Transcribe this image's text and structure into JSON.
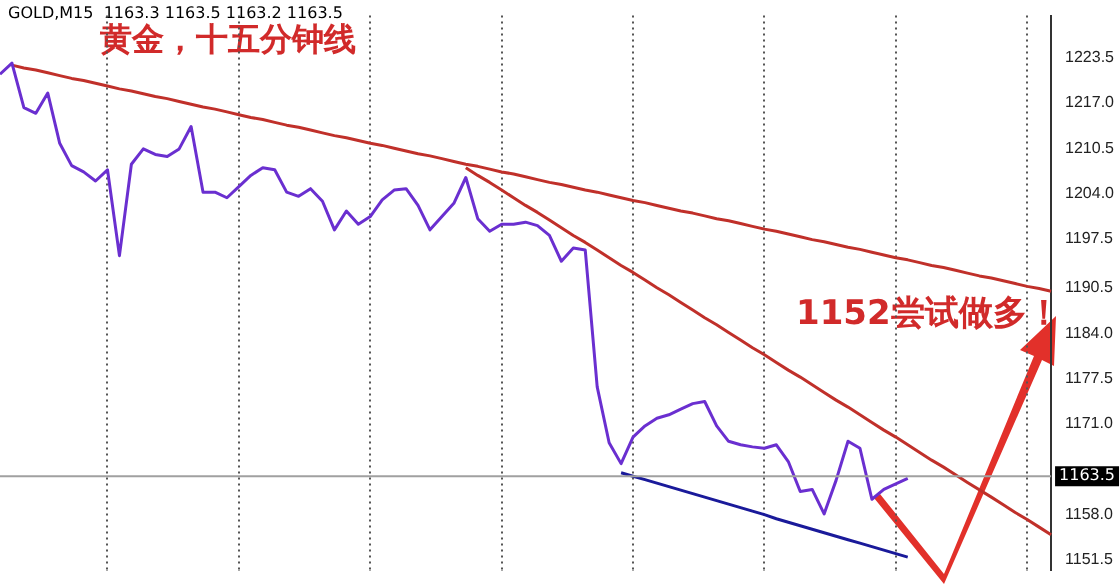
{
  "chart_data": {
    "type": "line",
    "title": "GOLD,M15  1163.3 1163.5 1163.2 1163.5",
    "annotations": [
      "黄金，十五分钟线",
      "1152尝试做多！"
    ],
    "categories": [
      null,
      null,
      null,
      null,
      null,
      null,
      null,
      null,
      null,
      null,
      null,
      null,
      null,
      null,
      null,
      null,
      null,
      null,
      null,
      null,
      null,
      null,
      null,
      null,
      null,
      null,
      null,
      null,
      null,
      null,
      null,
      null,
      null,
      null,
      null,
      null,
      null,
      null,
      null,
      null,
      null,
      null,
      null,
      null,
      null,
      null,
      null,
      null,
      null,
      null,
      null,
      null,
      null,
      null,
      null,
      null,
      null,
      null,
      null,
      null,
      null,
      null,
      null,
      null,
      null,
      null,
      null,
      null,
      null,
      null,
      null,
      null,
      null,
      null,
      null,
      null,
      null,
      null,
      null,
      null,
      null,
      null,
      null,
      null,
      null,
      null,
      null,
      null,
      null
    ],
    "series": [
      {
        "color": "#6a2fd0",
        "values": [
          1221.1,
          1222.7,
          1216.3,
          1215.5,
          1218.4,
          1211.2,
          1208.0,
          1207.1,
          1205.8,
          1207.4,
          1195.1,
          1208.2,
          1210.4,
          1209.6,
          1209.3,
          1210.4,
          1213.6,
          1204.2,
          1204.2,
          1203.4,
          1205.0,
          1206.6,
          1207.7,
          1207.4,
          1204.2,
          1203.6,
          1204.7,
          1202.9,
          1198.8,
          1201.5,
          1199.6,
          1200.7,
          1203.1,
          1204.5,
          1204.7,
          1202.3,
          1198.8,
          1200.7,
          1202.6,
          1206.3,
          1200.4,
          1198.6,
          1199.6,
          1199.6,
          1199.9,
          1199.4,
          1198.0,
          1194.3,
          1196.2,
          1195.9,
          1176.3,
          1168.3,
          1165.3,
          1169.1,
          1170.7,
          1171.8,
          1172.3,
          1173.1,
          1173.9,
          1174.2,
          1170.7,
          1168.5,
          1168.0,
          1167.7,
          1167.5,
          1168.0,
          1165.6,
          1161.3,
          1161.6,
          1158.1,
          1162.9,
          1168.5,
          1167.5,
          1160.2,
          1161.6,
          1162.4,
          1163.2,
          null,
          null,
          null,
          null,
          null,
          null,
          null,
          null,
          null,
          null,
          null,
          null
        ]
      },
      {
        "color": "#c0302a",
        "values": [
          null,
          1222.4,
          1222.0,
          1221.7,
          1221.3,
          1220.9,
          1220.5,
          1220.2,
          1219.8,
          1219.4,
          1219.0,
          1218.7,
          1218.3,
          1217.9,
          1217.6,
          1217.2,
          1216.8,
          1216.4,
          1216.1,
          1215.7,
          1215.3,
          1214.9,
          1214.6,
          1214.2,
          1213.8,
          1213.5,
          1213.1,
          1212.7,
          1212.3,
          1212.0,
          1211.6,
          1211.2,
          1210.9,
          1210.5,
          1210.1,
          1209.7,
          1209.4,
          1209.0,
          1208.6,
          1208.2,
          1207.9,
          1207.5,
          1207.1,
          1206.8,
          1206.4,
          1206.0,
          1205.6,
          1205.3,
          1204.9,
          1204.5,
          1204.2,
          1203.8,
          1203.4,
          1203.0,
          1202.7,
          1202.3,
          1201.9,
          1201.5,
          1201.2,
          1200.8,
          1200.4,
          1200.1,
          1199.7,
          1199.3,
          1198.9,
          1198.6,
          1198.2,
          1197.8,
          1197.4,
          1197.1,
          1196.7,
          1196.3,
          1196.0,
          1195.6,
          1195.2,
          1194.8,
          1194.5,
          1194.1,
          1193.7,
          1193.4,
          1193.0,
          1192.6,
          1192.2,
          1191.9,
          1191.5,
          1191.1,
          1190.7,
          1190.4,
          1190.0
        ]
      },
      {
        "color": "#c0302a",
        "values": [
          null,
          null,
          null,
          null,
          null,
          null,
          null,
          null,
          null,
          null,
          null,
          null,
          null,
          null,
          null,
          null,
          null,
          null,
          null,
          null,
          null,
          null,
          null,
          null,
          null,
          null,
          null,
          null,
          null,
          null,
          null,
          null,
          null,
          null,
          null,
          null,
          null,
          null,
          null,
          1207.7,
          1206.6,
          1205.6,
          1204.5,
          1203.4,
          1202.3,
          1201.3,
          1200.2,
          1199.1,
          1198.0,
          1197.0,
          1195.9,
          1194.8,
          1193.7,
          1192.7,
          1191.6,
          1190.5,
          1189.5,
          1188.4,
          1187.3,
          1186.2,
          1185.2,
          1184.1,
          1183.0,
          1181.9,
          1180.9,
          1179.8,
          1178.7,
          1177.7,
          1176.6,
          1175.5,
          1174.4,
          1173.4,
          1172.3,
          1171.2,
          1170.1,
          1169.1,
          1168.0,
          1166.9,
          1165.8,
          1164.8,
          1163.7,
          1162.6,
          null,
          1160.5,
          1159.4,
          1158.3,
          1157.3,
          1156.2,
          1155.1
        ]
      },
      {
        "color": "#1a1a9a",
        "values": [
          null,
          null,
          null,
          null,
          null,
          null,
          null,
          null,
          null,
          null,
          null,
          null,
          null,
          null,
          null,
          null,
          null,
          null,
          null,
          null,
          null,
          null,
          null,
          null,
          null,
          null,
          null,
          null,
          null,
          null,
          null,
          null,
          null,
          null,
          null,
          null,
          null,
          null,
          null,
          null,
          null,
          null,
          null,
          null,
          null,
          null,
          null,
          null,
          null,
          null,
          null,
          null,
          1164.0,
          1163.5,
          1163.0,
          1162.5,
          1162.0,
          1161.5,
          1161.0,
          1160.5,
          1160.0,
          1159.5,
          1159.0,
          1158.5,
          1158.0,
          1157.4,
          1156.9,
          1156.4,
          1155.9,
          1155.4,
          1154.9,
          1154.4,
          1153.9,
          1153.4,
          1152.9,
          1152.4,
          1151.9,
          null,
          null,
          null,
          null,
          null,
          null,
          null,
          null,
          null,
          null,
          null,
          null
        ]
      }
    ],
    "ylim": [
      1150,
      1229.5
    ],
    "yticks": [
      {
        "value": 1151.5,
        "label": "1151.5"
      },
      {
        "value": 1158,
        "label": "1158.0"
      },
      {
        "value": 1171,
        "label": "1171.0"
      },
      {
        "value": 1177.5,
        "label": "1177.5"
      },
      {
        "value": 1184,
        "label": "1184.0"
      },
      {
        "value": 1190.5,
        "label": "1190.5"
      },
      {
        "value": 1197.5,
        "label": "1197.5"
      },
      {
        "value": 1204,
        "label": "1204.0"
      },
      {
        "value": 1210.5,
        "label": "1210.5"
      },
      {
        "value": 1217,
        "label": "1217.0"
      },
      {
        "value": 1223.5,
        "label": "1223.5"
      }
    ],
    "ref_lines": [
      {
        "axis": "y",
        "value": 1163.5,
        "label": "1163.5",
        "color": "#a0a0a0"
      }
    ],
    "grid": "x",
    "legend": false,
    "tick_labels": "y",
    "marker": "none",
    "line_style": "solid"
  }
}
